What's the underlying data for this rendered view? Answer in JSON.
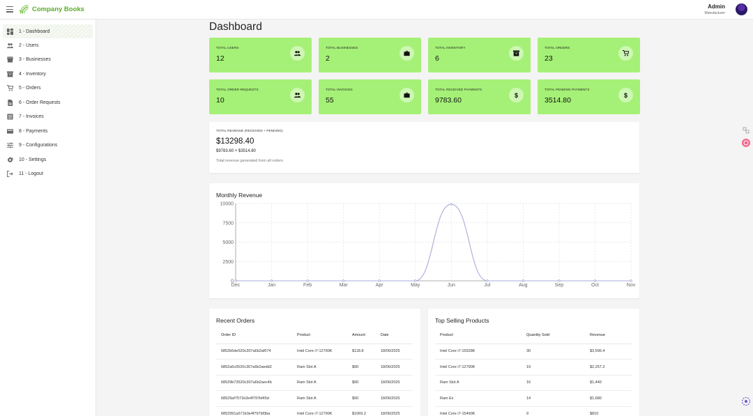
{
  "header": {
    "brand": "Company Books",
    "user_name": "Admin",
    "user_role": "Manufacturer",
    "brand_color": "#5bab2b"
  },
  "sidebar": {
    "items": [
      {
        "label": "1 - Dashboard",
        "icon": "dashboard-icon"
      },
      {
        "label": "2 - Users",
        "icon": "users-icon"
      },
      {
        "label": "3 - Businesses",
        "icon": "store-icon"
      },
      {
        "label": "4 - Inventory",
        "icon": "inventory-icon"
      },
      {
        "label": "5 - Orders",
        "icon": "cart-icon"
      },
      {
        "label": "6 - Order Requests",
        "icon": "document-icon"
      },
      {
        "label": "7 - Invoices",
        "icon": "invoice-icon"
      },
      {
        "label": "8 - Payments",
        "icon": "credit-card-icon"
      },
      {
        "label": "9 - Configurations",
        "icon": "sliders-icon"
      },
      {
        "label": "10 - Settings",
        "icon": "gear-icon"
      },
      {
        "label": "11 - Logout",
        "icon": "logout-icon"
      }
    ]
  },
  "page": {
    "title": "Dashboard"
  },
  "stats": [
    {
      "label": "TOTAL USERS",
      "value": "12",
      "icon": "users-icon"
    },
    {
      "label": "TOTAL BUSINESSES",
      "value": "2",
      "icon": "briefcase-icon"
    },
    {
      "label": "TOTAL INVENTORY",
      "value": "6",
      "icon": "inventory-icon"
    },
    {
      "label": "TOTAL ORDERS",
      "value": "23",
      "icon": "cart-icon"
    },
    {
      "label": "TOTAL ORDER REQUESTS",
      "value": "10",
      "icon": "users-icon"
    },
    {
      "label": "TOTAL INVOICES",
      "value": "55",
      "icon": "briefcase-icon"
    },
    {
      "label": "TOTAL RECEIVED PAYMENTS",
      "value": "9783.60",
      "icon": "dollar-icon"
    },
    {
      "label": "TOTAL PENDING PAYMENTS",
      "value": "3514.80",
      "icon": "dollar-icon"
    }
  ],
  "stat_color": "#a5f177",
  "revenue": {
    "label": "TOTAL REVENUE (RECEIVED + PENDING)",
    "total": "$13298.40",
    "breakdown": "$9783.60 + $3514.80",
    "note": "Total revenue generated from all orders"
  },
  "monthly_revenue": {
    "title": "Monthly Revenue"
  },
  "chart_data": {
    "type": "area",
    "title": "Monthly Revenue",
    "categories": [
      "Dec",
      "Jan",
      "Feb",
      "Mar",
      "Apr",
      "May",
      "Jun",
      "Jul",
      "Aug",
      "Sep",
      "Oct",
      "Nov"
    ],
    "values": [
      0,
      0,
      0,
      0,
      0,
      0,
      9900,
      0,
      0,
      0,
      0,
      0
    ],
    "yticks": [
      0,
      2500,
      5000,
      7500,
      10000
    ],
    "ylim": [
      0,
      10000
    ],
    "grid": true,
    "color": "#a8acd8"
  },
  "recent_orders": {
    "title": "Recent Orders",
    "columns": [
      "Order ID",
      "Product",
      "Amount",
      "Date"
    ],
    "rows": [
      [
        "6852b5de520c307a6b2af074",
        "Intel Core i7-12790K",
        "$118.8",
        "18/06/2025"
      ],
      [
        "6852a5c0520c307a6b2aedd2",
        "Ram Slot A",
        "$90",
        "18/06/2025"
      ],
      [
        "68529b73520c307a6b2aec4b",
        "Ram Slot A",
        "$90",
        "18/06/2025"
      ],
      [
        "68529af7571b3e4f797bf45d",
        "Ram Slot A",
        "$90",
        "18/06/2025"
      ],
      [
        "6852991a571b3e4f797bf3ba",
        "Intel Core i7-12790K",
        "$1069.2",
        "18/06/2025"
      ]
    ]
  },
  "top_products": {
    "title": "Top Selling Products",
    "columns": [
      "Product",
      "Quantity Sold",
      "Revenue"
    ],
    "rows": [
      [
        "Intel Core i7-15528K",
        "30",
        "$3,596.4"
      ],
      [
        "Intel Core i7-12790K",
        "19",
        "$2,257.2"
      ],
      [
        "Ram Slot A",
        "16",
        "$1,440"
      ],
      [
        "Ram Ex",
        "14",
        "$1,680"
      ],
      [
        "Intel Core i7-15490K",
        "9",
        "$810"
      ]
    ]
  }
}
